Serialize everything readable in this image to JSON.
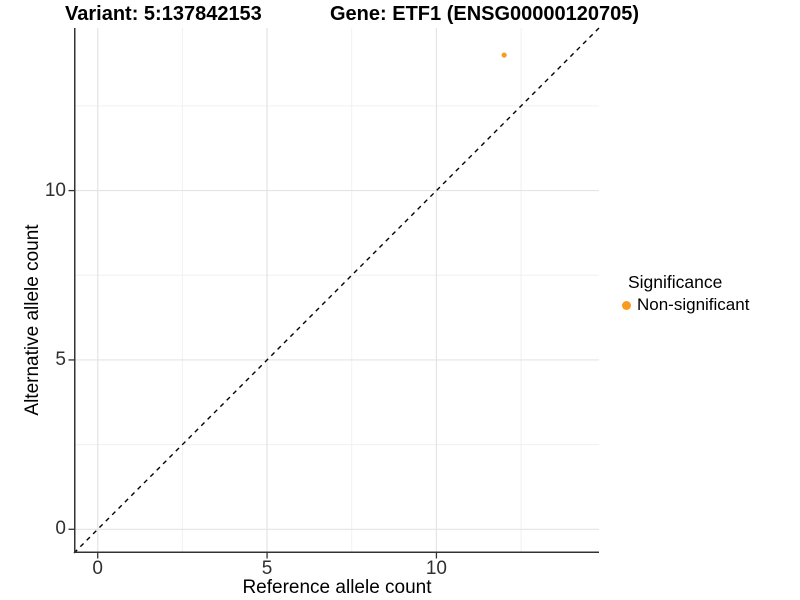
{
  "titles": {
    "variant": "Variant: 5:137842153",
    "gene": "Gene: ETF1 (ENSG00000120705)"
  },
  "axes": {
    "x_label": "Reference allele count",
    "y_label": "Alternative allele count"
  },
  "legend": {
    "title": "Significance",
    "items": [
      {
        "label": "Non-significant",
        "color": "#F89B1E"
      }
    ]
  },
  "chart_data": {
    "type": "scatter",
    "title": "Variant: 5:137842153 | Gene: ETF1 (ENSG00000120705)",
    "xlabel": "Reference allele count",
    "ylabel": "Alternative allele count",
    "xlim": [
      -0.7,
      14.8
    ],
    "ylim": [
      -0.7,
      14.8
    ],
    "x_major_ticks": [
      0,
      5,
      10
    ],
    "y_major_ticks": [
      0,
      5,
      10
    ],
    "x_minor_ticks": [
      2.5,
      7.5,
      12.5
    ],
    "y_minor_ticks": [
      2.5,
      7.5,
      12.5
    ],
    "grid": true,
    "legend_position": "right",
    "reference_line": {
      "slope": 1,
      "intercept": 0,
      "style": "dashed",
      "color": "#000000"
    },
    "series": [
      {
        "name": "Non-significant",
        "color": "#F89B1E",
        "point_radius": 2.6,
        "points": [
          {
            "x": 12,
            "y": 14
          }
        ]
      }
    ]
  }
}
